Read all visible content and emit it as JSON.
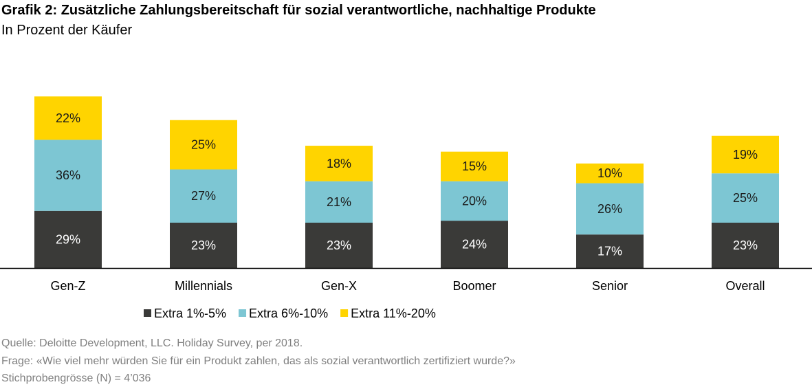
{
  "title": "Grafik 2: Zusätzliche Zahlungsbereitschaft für sozial verantwortliche, nachhaltige Produkte",
  "subtitle": "In Prozent der Käufer",
  "source": {
    "line1": "Quelle: Deloitte Development, LLC. Holiday Survey, per 2018.",
    "line2": "Frage: «Wie viel mehr würden Sie für ein Produkt zahlen, das als sozial verantwortlich zertifiziert wurde?»",
    "line3": "Stichprobengrösse (N) = 4’036"
  },
  "chart_data": {
    "type": "bar",
    "stacked": true,
    "categories": [
      "Gen-Z",
      "Millennials",
      "Gen-X",
      "Boomer",
      "Senior",
      "Overall"
    ],
    "series": [
      {
        "name": "Extra 1%-5%",
        "values": [
          29,
          23,
          23,
          24,
          17,
          23
        ],
        "color": "#3a3a38",
        "label_color": "#ffffff"
      },
      {
        "name": "Extra 6%-10%",
        "values": [
          36,
          27,
          21,
          20,
          26,
          25
        ],
        "color": "#7dc6d3",
        "label_color": "#1a1a1a"
      },
      {
        "name": "Extra 11%-20%",
        "values": [
          22,
          25,
          18,
          15,
          10,
          19
        ],
        "color": "#ffd400",
        "label_color": "#1a1a1a"
      }
    ],
    "value_suffix": "%",
    "legend_position": "bottom",
    "grid": false
  }
}
